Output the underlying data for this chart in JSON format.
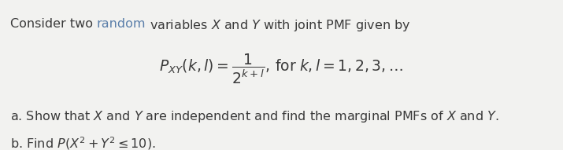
{
  "background_color": "#f2f2f0",
  "text_color": "#3a3a3a",
  "random_color": "#5b7faa",
  "intro_fontsize": 11.5,
  "formula_fontsize": 13.5,
  "parts_fontsize": 11.5,
  "figsize": [
    7.15,
    1.91
  ],
  "dpi": 100
}
